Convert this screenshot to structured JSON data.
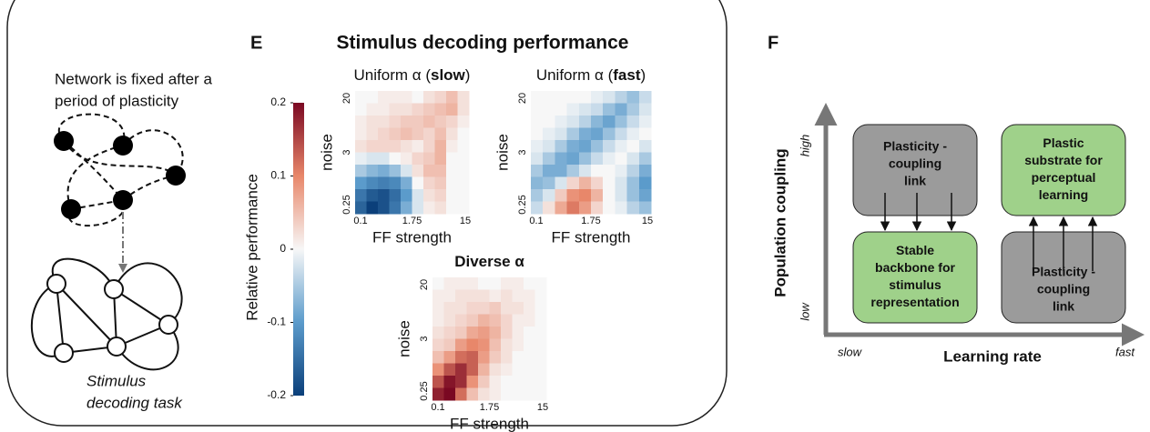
{
  "left_panel": {
    "caption": [
      "Network is fixed after a",
      "period of plasticity"
    ],
    "task": [
      "Stimulus",
      "decoding task"
    ]
  },
  "panel_e": {
    "label": "E",
    "title": "Stimulus decoding performance",
    "colorbar": {
      "label": "Relative performance",
      "clim": [
        -0.2,
        0.2
      ],
      "ticks": [
        0.2,
        0.1,
        0,
        -0.1,
        -0.2
      ],
      "colorscale": [
        "#0b3f7a",
        "#5b9bcb",
        "#f7f7f7",
        "#e8876a",
        "#7a0822"
      ]
    }
  },
  "chart_data": [
    {
      "type": "heatmap",
      "title_prefix": "Uniform α (",
      "title_bold": "slow",
      "title_suffix": ")",
      "xlabel": "FF strength",
      "ylabel": "noise",
      "xtick_labels": [
        "0.1",
        "1.75",
        "15"
      ],
      "ytick_labels": [
        "20",
        "3",
        "0.25"
      ],
      "z": [
        [
          0,
          0,
          0.01,
          0.01,
          0.01,
          0,
          0.02,
          0.03,
          0.05,
          0.02
        ],
        [
          0,
          0.01,
          0.01,
          0.02,
          0.02,
          0.03,
          0.04,
          0.05,
          0.06,
          0.02
        ],
        [
          0.01,
          0.02,
          0.02,
          0.03,
          0.04,
          0.04,
          0.05,
          0.04,
          0.03,
          0.01
        ],
        [
          0.01,
          0.02,
          0.03,
          0.04,
          0.05,
          0.04,
          0.03,
          0.05,
          0.02,
          0
        ],
        [
          0.02,
          0.03,
          0.03,
          0.03,
          0.02,
          0.01,
          0.03,
          0.06,
          0.01,
          0
        ],
        [
          -0.01,
          -0.02,
          -0.02,
          0,
          0.01,
          0.03,
          0.04,
          0.06,
          0,
          0
        ],
        [
          -0.05,
          -0.07,
          -0.08,
          -0.06,
          -0.02,
          0.02,
          0.05,
          0.05,
          0,
          0
        ],
        [
          -0.1,
          -0.12,
          -0.13,
          -0.12,
          -0.08,
          0,
          0.03,
          0.04,
          0,
          0
        ],
        [
          -0.14,
          -0.17,
          -0.18,
          -0.15,
          -0.1,
          -0.02,
          0.02,
          0.03,
          0,
          0
        ],
        [
          -0.16,
          -0.2,
          -0.18,
          -0.14,
          -0.08,
          -0.02,
          0.01,
          0.02,
          0,
          0
        ]
      ]
    },
    {
      "type": "heatmap",
      "title_prefix": "Uniform α (",
      "title_bold": "fast",
      "title_suffix": ")",
      "xlabel": "FF strength",
      "ylabel": "noise",
      "xtick_labels": [
        "0.1",
        "1.75",
        "15"
      ],
      "ytick_labels": [
        "20",
        "3",
        "0.25"
      ],
      "z": [
        [
          0,
          0,
          0,
          0,
          0,
          -0.01,
          -0.02,
          -0.04,
          -0.06,
          -0.03
        ],
        [
          0,
          0,
          0,
          -0.01,
          -0.02,
          -0.03,
          -0.06,
          -0.08,
          -0.05,
          -0.02
        ],
        [
          0,
          0,
          -0.01,
          -0.02,
          -0.04,
          -0.07,
          -0.09,
          -0.06,
          -0.03,
          -0.01
        ],
        [
          0,
          -0.01,
          -0.02,
          -0.05,
          -0.08,
          -0.09,
          -0.06,
          -0.03,
          -0.01,
          0
        ],
        [
          -0.01,
          -0.02,
          -0.05,
          -0.08,
          -0.09,
          -0.06,
          -0.03,
          -0.01,
          0,
          -0.02
        ],
        [
          -0.02,
          -0.05,
          -0.08,
          -0.09,
          -0.06,
          -0.03,
          -0.01,
          0,
          -0.02,
          -0.05
        ],
        [
          -0.05,
          -0.08,
          -0.08,
          -0.05,
          -0.02,
          0,
          0,
          -0.01,
          -0.04,
          -0.08
        ],
        [
          -0.07,
          -0.06,
          -0.02,
          0.03,
          0.06,
          0.03,
          0,
          -0.02,
          -0.06,
          -0.1
        ],
        [
          -0.05,
          -0.02,
          0.04,
          0.09,
          0.1,
          0.06,
          0,
          -0.02,
          -0.06,
          -0.09
        ],
        [
          -0.03,
          0.02,
          0.07,
          0.11,
          0.08,
          0.03,
          0,
          -0.01,
          -0.04,
          -0.06
        ]
      ]
    },
    {
      "type": "heatmap",
      "title_bold": "Diverse α",
      "xlabel": "FF strength",
      "ylabel": "noise",
      "xtick_labels": [
        "0.1",
        "1.75",
        "15"
      ],
      "ytick_labels": [
        "20",
        "3",
        "0.25"
      ],
      "z": [
        [
          0,
          0.01,
          0.01,
          0.01,
          0,
          0,
          0.01,
          0.01,
          0,
          0
        ],
        [
          0.01,
          0.01,
          0.02,
          0.02,
          0.02,
          0.01,
          0.02,
          0.01,
          0.01,
          0
        ],
        [
          0.01,
          0.02,
          0.02,
          0.03,
          0.03,
          0.04,
          0.02,
          0.02,
          0.01,
          0
        ],
        [
          0.01,
          0.02,
          0.03,
          0.04,
          0.06,
          0.05,
          0.03,
          0.01,
          0.01,
          0
        ],
        [
          0.02,
          0.03,
          0.04,
          0.07,
          0.08,
          0.06,
          0.03,
          0.01,
          0,
          0
        ],
        [
          0.03,
          0.04,
          0.08,
          0.1,
          0.09,
          0.05,
          0.02,
          0.01,
          0,
          0
        ],
        [
          0.05,
          0.08,
          0.12,
          0.13,
          0.08,
          0.04,
          0.02,
          0,
          0,
          0
        ],
        [
          0.09,
          0.14,
          0.17,
          0.13,
          0.06,
          0.02,
          0.01,
          0,
          0,
          0
        ],
        [
          0.14,
          0.19,
          0.17,
          0.09,
          0.04,
          0.01,
          0,
          0,
          0,
          0
        ],
        [
          0.18,
          0.2,
          0.12,
          0.05,
          0.02,
          0.01,
          0,
          0,
          0,
          0
        ]
      ]
    }
  ],
  "panel_f": {
    "label": "F",
    "y_axis": "Population coupling",
    "y_high": "high",
    "y_low": "low",
    "x_axis": "Learning rate",
    "x_slow": "slow",
    "x_fast": "fast",
    "boxes": [
      {
        "lines": [
          "Plasticity -",
          "coupling",
          "link"
        ],
        "color": "#9b9b9b"
      },
      {
        "lines": [
          "Plastic",
          "substrate for",
          "perceptual",
          "learning"
        ],
        "color": "#9fd18a"
      },
      {
        "lines": [
          "Stable",
          "backbone for",
          "stimulus",
          "representation"
        ],
        "color": "#9fd18a"
      },
      {
        "lines": [
          "Plasticity -",
          "coupling",
          "link"
        ],
        "color": "#9b9b9b"
      }
    ]
  }
}
